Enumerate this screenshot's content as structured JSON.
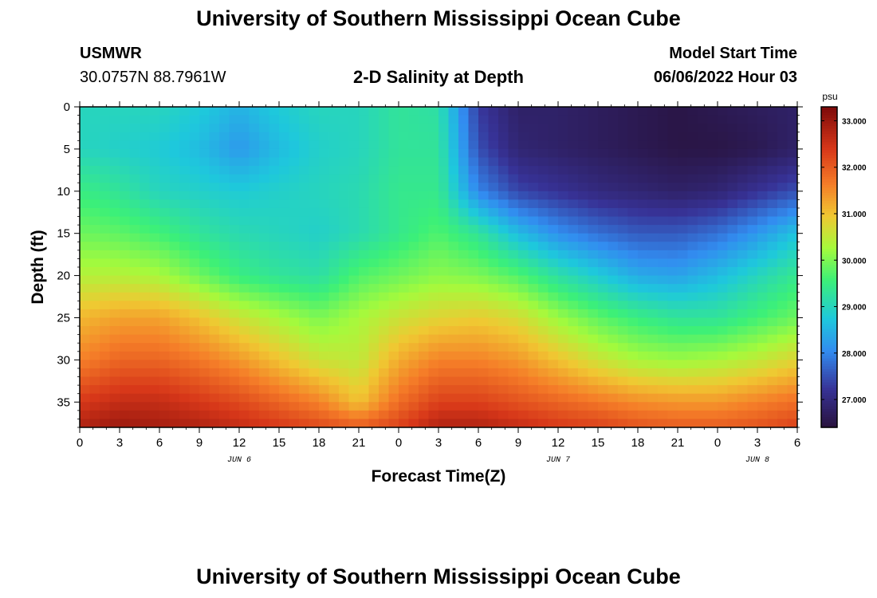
{
  "title": "University of Southern Mississippi Ocean Cube",
  "footer_title": "University of Southern Mississippi Ocean Cube",
  "station": {
    "id": "USMWR",
    "coords": "30.0757N  88.7961W"
  },
  "subtitle": "2-D Salinity at Depth",
  "model_start": {
    "label": "Model Start Time",
    "value": "06/06/2022 Hour 03"
  },
  "chart_data": {
    "type": "heatmap",
    "title": "2-D Salinity at Depth",
    "xlabel": "Forecast Time(Z)",
    "ylabel": "Depth (ft)",
    "x_tick_labels": [
      "0",
      "3",
      "6",
      "9",
      "12",
      "15",
      "18",
      "21",
      "0",
      "3",
      "6",
      "9",
      "12",
      "15",
      "18",
      "21",
      "0",
      "3",
      "6"
    ],
    "x_hours": [
      0,
      3,
      6,
      9,
      12,
      15,
      18,
      21,
      24,
      27,
      30,
      33,
      36,
      39,
      42,
      45,
      48,
      51,
      54
    ],
    "date_labels": [
      {
        "text": "JUN 6",
        "hour": 12
      },
      {
        "text": "JUN 7",
        "hour": 36
      },
      {
        "text": "JUN 8",
        "hour": 51
      }
    ],
    "y_ticks": [
      0,
      5,
      10,
      15,
      20,
      25,
      30,
      35
    ],
    "ylim": [
      0,
      38
    ],
    "xlim": [
      0,
      54
    ],
    "colorbar": {
      "unit": "psu",
      "ticks": [
        "27.000",
        "28.000",
        "29.000",
        "30.000",
        "31.000",
        "32.000",
        "33.000"
      ],
      "range": [
        26.4,
        33.3
      ]
    },
    "grid_x_hours": [
      0,
      3,
      6,
      9,
      12,
      15,
      18,
      21,
      24,
      27,
      30,
      33,
      36,
      39,
      42,
      45,
      48,
      51,
      54
    ],
    "grid_depths": [
      0,
      5,
      10,
      15,
      20,
      25,
      30,
      35,
      38
    ],
    "values": [
      [
        29.0,
        29.0,
        29.0,
        28.8,
        28.5,
        28.8,
        29.0,
        29.0,
        29.3,
        29.2,
        27.3,
        26.8,
        26.8,
        26.7,
        26.6,
        26.5,
        26.6,
        26.7,
        26.8
      ],
      [
        29.0,
        28.9,
        28.8,
        28.6,
        28.2,
        28.6,
        28.9,
        29.0,
        29.3,
        29.3,
        27.5,
        26.9,
        26.8,
        26.7,
        26.6,
        26.5,
        26.5,
        26.6,
        26.8
      ],
      [
        29.5,
        29.3,
        29.0,
        28.9,
        28.8,
        28.9,
        29.0,
        29.1,
        29.4,
        29.4,
        28.0,
        27.4,
        27.2,
        27.0,
        26.9,
        26.8,
        26.9,
        27.2,
        27.5
      ],
      [
        29.9,
        29.8,
        29.6,
        29.3,
        29.1,
        29.0,
        28.9,
        29.1,
        29.4,
        29.7,
        29.3,
        28.6,
        28.1,
        27.8,
        27.6,
        27.6,
        27.8,
        28.2,
        28.7
      ],
      [
        30.4,
        30.4,
        30.3,
        29.9,
        29.5,
        29.3,
        29.2,
        29.7,
        29.9,
        30.1,
        30.0,
        29.7,
        29.2,
        28.8,
        28.4,
        28.3,
        28.6,
        29.0,
        29.4
      ],
      [
        31.1,
        31.3,
        31.3,
        31.0,
        30.6,
        30.3,
        30.0,
        30.3,
        30.6,
        30.8,
        30.9,
        30.7,
        30.2,
        29.8,
        29.5,
        29.3,
        29.3,
        29.6,
        29.9
      ],
      [
        31.6,
        31.9,
        31.9,
        31.7,
        31.4,
        31.0,
        30.6,
        30.5,
        31.2,
        31.6,
        31.6,
        31.4,
        31.0,
        30.6,
        30.3,
        30.2,
        30.3,
        30.5,
        30.8
      ],
      [
        32.4,
        32.6,
        32.6,
        32.4,
        32.2,
        31.9,
        31.6,
        31.0,
        31.8,
        32.3,
        32.3,
        32.1,
        31.9,
        31.7,
        31.5,
        31.4,
        31.4,
        31.6,
        31.8
      ],
      [
        32.8,
        33.0,
        32.9,
        32.8,
        32.6,
        32.4,
        32.2,
        32.0,
        32.3,
        32.8,
        32.8,
        32.6,
        32.4,
        32.3,
        32.1,
        32.0,
        32.0,
        32.1,
        32.3
      ]
    ]
  }
}
